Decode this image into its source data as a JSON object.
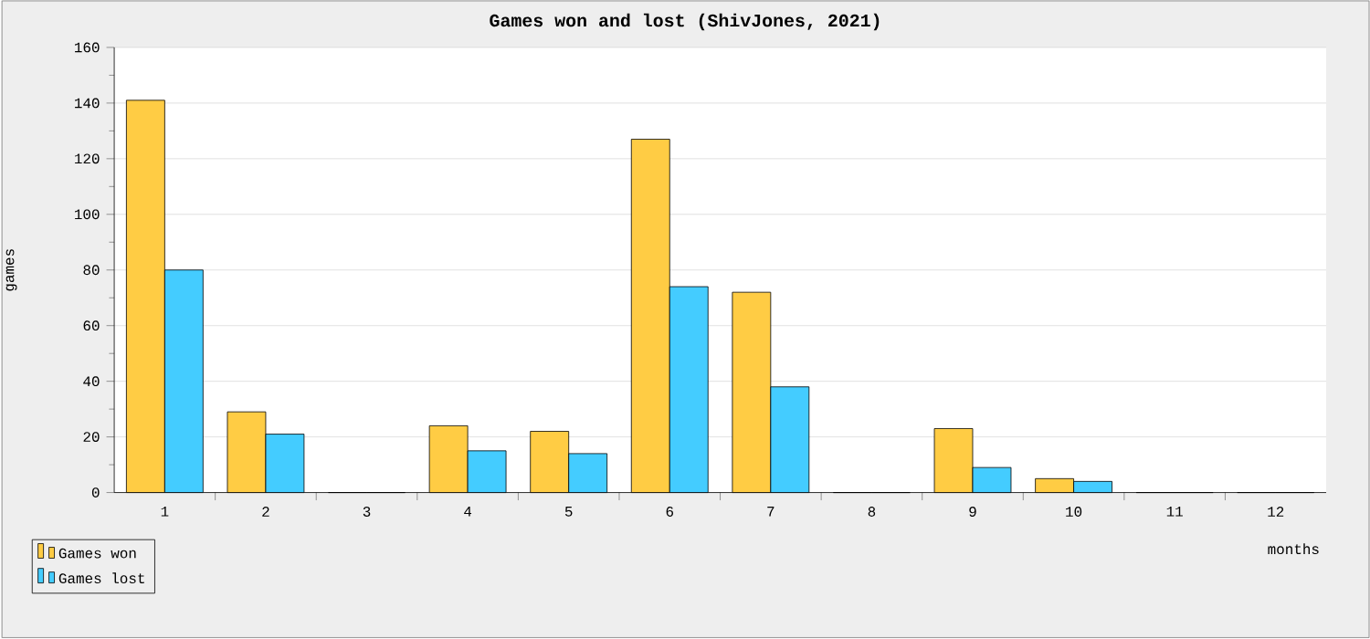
{
  "chart_data": {
    "type": "bar",
    "title": "Games won and lost (ShivJones, 2021)",
    "xlabel": "months",
    "ylabel": "games",
    "categories": [
      "1",
      "2",
      "3",
      "4",
      "5",
      "6",
      "7",
      "8",
      "9",
      "10",
      "11",
      "12"
    ],
    "series": [
      {
        "name": "Games won",
        "color": "#ffcc44",
        "values": [
          141,
          29,
          0,
          24,
          22,
          127,
          72,
          0,
          23,
          5,
          0,
          0
        ]
      },
      {
        "name": "Games lost",
        "color": "#44ccff",
        "values": [
          80,
          21,
          0,
          15,
          14,
          74,
          38,
          0,
          9,
          4,
          0,
          0
        ]
      }
    ],
    "ylim": [
      0,
      160
    ],
    "yticks": [
      0,
      20,
      40,
      60,
      80,
      100,
      120,
      140,
      160
    ],
    "grid": "y",
    "legend": "bottom left"
  }
}
